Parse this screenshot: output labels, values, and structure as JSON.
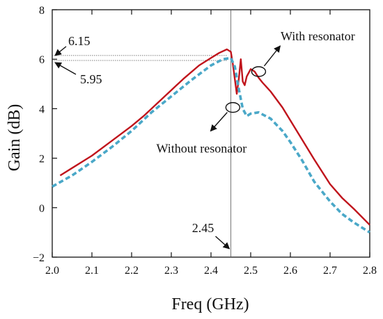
{
  "chart_data": {
    "type": "line",
    "xlabel": "Freq (GHz)",
    "ylabel": "Gain (dB)",
    "xlim": [
      2.0,
      2.8
    ],
    "ylim": [
      -2,
      8
    ],
    "x_ticks": [
      "2.0",
      "2.1",
      "2.2",
      "2.3",
      "2.4",
      "2.5",
      "2.6",
      "2.7",
      "2.8"
    ],
    "y_ticks": [
      "−2",
      "0",
      "2",
      "4",
      "6",
      "8"
    ],
    "grid": false,
    "series": [
      {
        "name": "With resonator",
        "color": "#c0141c",
        "style": "solid",
        "x": [
          2.02,
          2.05,
          2.1,
          2.15,
          2.2,
          2.23,
          2.27,
          2.3,
          2.33,
          2.37,
          2.4,
          2.42,
          2.44,
          2.45,
          2.455,
          2.465,
          2.47,
          2.475,
          2.48,
          2.485,
          2.49,
          2.5,
          2.51,
          2.52,
          2.53,
          2.55,
          2.58,
          2.62,
          2.66,
          2.7,
          2.73,
          2.76,
          2.8
        ],
        "y": [
          1.3,
          1.6,
          2.1,
          2.7,
          3.3,
          3.7,
          4.3,
          4.75,
          5.2,
          5.75,
          6.05,
          6.25,
          6.4,
          6.3,
          5.8,
          4.6,
          5.2,
          6.0,
          5.1,
          4.95,
          5.3,
          5.6,
          5.5,
          5.25,
          5.05,
          4.7,
          4.05,
          3.0,
          1.95,
          0.95,
          0.4,
          -0.05,
          -0.7
        ]
      },
      {
        "name": "Without resonator",
        "color": "#4aa8c8",
        "style": "dashed",
        "x": [
          2.0,
          2.05,
          2.1,
          2.15,
          2.2,
          2.25,
          2.3,
          2.35,
          2.4,
          2.43,
          2.45,
          2.46,
          2.47,
          2.48,
          2.49,
          2.5,
          2.52,
          2.55,
          2.58,
          2.6,
          2.63,
          2.66,
          2.7,
          2.73,
          2.76,
          2.8
        ],
        "y": [
          0.85,
          1.3,
          1.85,
          2.45,
          3.1,
          3.85,
          4.5,
          5.15,
          5.75,
          6.0,
          6.05,
          5.7,
          4.8,
          4.0,
          3.7,
          3.8,
          3.85,
          3.6,
          3.1,
          2.65,
          1.9,
          1.05,
          0.25,
          -0.25,
          -0.6,
          -1.0
        ]
      }
    ],
    "annotations": {
      "peak_with": "6.15",
      "peak_without": "5.95",
      "center_freq": "2.45",
      "label_with": "With resonator",
      "label_without": "Without resonator"
    },
    "reference_values": {
      "peak_with_db": 6.15,
      "peak_without_db": 5.95,
      "center_freq_ghz": 2.45,
      "with_label_marker_at": [
        2.52,
        5.5
      ],
      "without_label_marker_at": [
        2.455,
        4.05
      ]
    }
  }
}
